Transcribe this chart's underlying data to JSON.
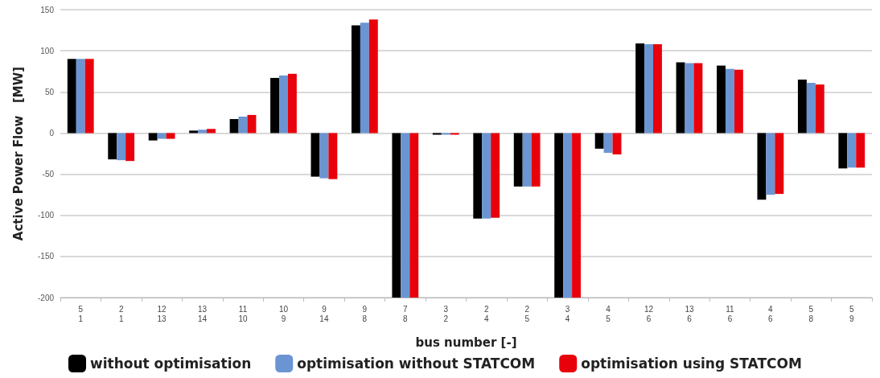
{
  "chart_data": {
    "type": "bar",
    "xlabel": "bus number [-]",
    "ylabel": "Active Power Flow   [MW]",
    "categories": [
      "5\n1",
      "2\n1",
      "12\n13",
      "13\n14",
      "11\n10",
      "10\n9",
      "9\n14",
      "9\n8",
      "7\n8",
      "3\n2",
      "2\n4",
      "2\n5",
      "3\n4",
      "4\n5",
      "12\n6",
      "13\n6",
      "11\n6",
      "4\n6",
      "5\n8",
      "5\n9"
    ],
    "series": [
      {
        "name": "without optimisation",
        "color": "#000000",
        "values": [
          90,
          -32,
          -9,
          3,
          17,
          67,
          -53,
          131,
          -200,
          -2,
          -104,
          -65,
          -200,
          -19,
          109,
          86,
          82,
          -81,
          65,
          -43
        ]
      },
      {
        "name": "optimisation without STATCOM",
        "color": "#6a95d2",
        "values": [
          90,
          -33,
          -7,
          4,
          20,
          70,
          -55,
          134,
          -200,
          -2,
          -104,
          -65,
          -200,
          -24,
          108,
          85,
          78,
          -75,
          61,
          -42
        ]
      },
      {
        "name": "optimisation using STATCOM",
        "color": "#e8000b",
        "values": [
          90,
          -34,
          -7,
          5,
          22,
          72,
          -56,
          138,
          -200,
          -2,
          -103,
          -65,
          -200,
          -26,
          108,
          85,
          77,
          -74,
          59,
          -42
        ]
      }
    ],
    "ylim": [
      -200,
      150
    ],
    "yticks": [
      -200,
      -150,
      -100,
      -50,
      0,
      50,
      100,
      150
    ],
    "grid": "y",
    "legend": "bottom left"
  }
}
